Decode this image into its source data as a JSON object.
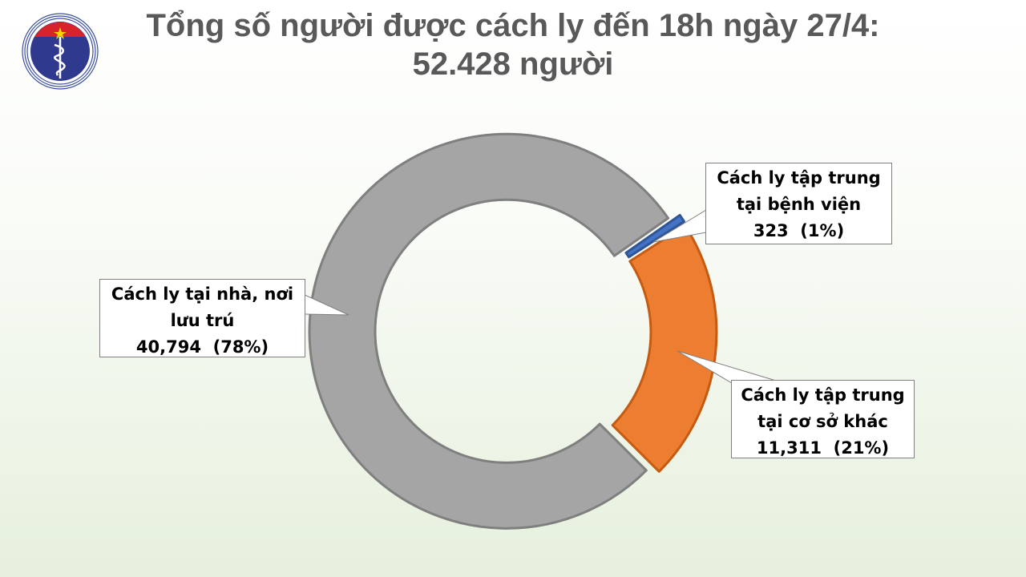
{
  "header": {
    "title_line1": "Tổng số người được cách ly đến 18h ngày 27/4:",
    "title_line2": "52.428 người",
    "logo": {
      "name": "ministry-of-health-logo",
      "text_top": "BỘ Y TẾ",
      "text_bottom": "MINISTRY OF HEALTH"
    }
  },
  "chart_data": {
    "type": "pie",
    "style": "doughnut-exploded",
    "title": "Tổng số người được cách ly đến 18h ngày 27/4: 52.428 người",
    "slices": [
      {
        "label": "Cách ly tập trung tại bệnh viện",
        "value": 323,
        "percent": "1%",
        "value_text": "323",
        "color": "#4472c4"
      },
      {
        "label": "Cách ly tập trung tại cơ sở khác",
        "value": 11311,
        "percent": "21%",
        "value_text": "11,311",
        "color": "#ed7d31"
      },
      {
        "label": "Cách ly tại nhà, nơi lưu trú",
        "value": 40794,
        "percent": "78%",
        "value_text": "40,794",
        "color": "#a5a5a5"
      }
    ],
    "legend": "none",
    "data_labels": "callouts"
  }
}
